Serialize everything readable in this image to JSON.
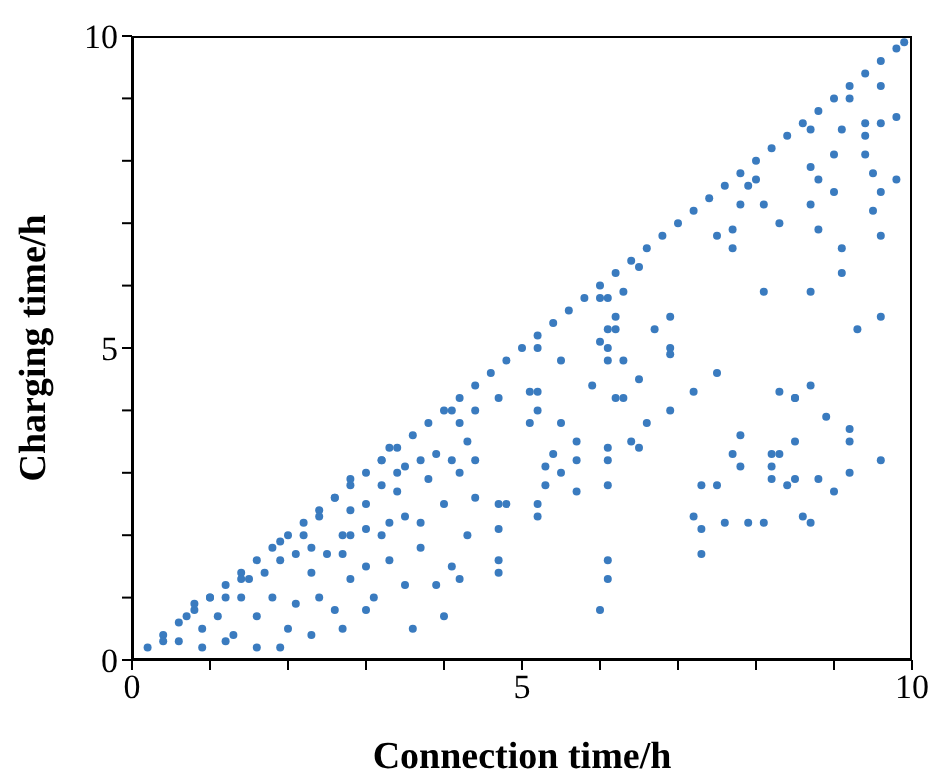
{
  "chart_data": {
    "type": "scatter",
    "xlabel": "Connection time/h",
    "ylabel": "Charging time/h",
    "xlim": [
      0,
      10
    ],
    "ylim": [
      0,
      10
    ],
    "xticks": [
      0,
      {
        "value": 1,
        "label": null
      },
      {
        "value": 2,
        "label": null
      },
      {
        "value": 3,
        "label": null
      },
      {
        "value": 4,
        "label": null
      },
      5,
      {
        "value": 6,
        "label": null
      },
      {
        "value": 7,
        "label": null
      },
      {
        "value": 8,
        "label": null
      },
      {
        "value": 9,
        "label": null
      },
      10
    ],
    "yticks": [
      0,
      {
        "value": 1,
        "label": null
      },
      {
        "value": 2,
        "label": null
      },
      {
        "value": 3,
        "label": null
      },
      {
        "value": 4,
        "label": null
      },
      5,
      {
        "value": 6,
        "label": null
      },
      {
        "value": 7,
        "label": null
      },
      {
        "value": 8,
        "label": null
      },
      {
        "value": 9,
        "label": null
      },
      10
    ],
    "marker": "circle",
    "series": [
      {
        "color": "#3a7bbf",
        "x": [
          0.2,
          0.4,
          0.6,
          0.8,
          1.0,
          1.2,
          1.4,
          1.6,
          1.8,
          2.0,
          2.2,
          2.4,
          2.6,
          2.8,
          3.0,
          3.2,
          3.4,
          3.6,
          3.8,
          4.0,
          4.2,
          4.4,
          4.6,
          4.8,
          5.0,
          5.2,
          5.4,
          5.6,
          5.8,
          6.0,
          6.2,
          6.4,
          6.6,
          6.8,
          7.0,
          7.2,
          7.4,
          7.6,
          7.8,
          8.0,
          8.2,
          8.4,
          8.6,
          8.8,
          9.0,
          9.2,
          9.4,
          9.6,
          9.8,
          9.9,
          5.1,
          5.2,
          5.2,
          5.1,
          5.5,
          5.4,
          5.3,
          5.5,
          5.3,
          5.2,
          5.2,
          5.7,
          5.7,
          5.7,
          5.9,
          6.1,
          6.1,
          6.1,
          6.2,
          6.3,
          6.4,
          6.5,
          6.6,
          6.9,
          6.1,
          6.1,
          6.0,
          7.2,
          7.2,
          7.3,
          7.3,
          7.3,
          7.5,
          7.6,
          7.7,
          7.8,
          7.8,
          7.9,
          8.1,
          8.2,
          8.2,
          8.2,
          8.3,
          8.3,
          8.4,
          8.5,
          8.5,
          8.5,
          8.6,
          8.7,
          8.7,
          8.8,
          8.9,
          9.0,
          9.2,
          9.2,
          9.2,
          9.6,
          5.2,
          5.5,
          6.0,
          6.1,
          6.1,
          6.3,
          6.1,
          6.2,
          6.2,
          6.0,
          6.1,
          6.3,
          6.5,
          6.7,
          6.9,
          6.9,
          6.9,
          6.5,
          7.5,
          7.5,
          7.7,
          7.7,
          7.8,
          7.9,
          8.0,
          8.1,
          8.3,
          8.1,
          8.7,
          8.8,
          8.7,
          8.8,
          9.0,
          9.0,
          8.7,
          9.1,
          9.1,
          9.1,
          9.3,
          9.4,
          9.4,
          9.4,
          9.5,
          9.5,
          9.6,
          9.6,
          9.6,
          9.6,
          9.8,
          9.8,
          9.6,
          9.2,
          8.7,
          8.5,
          0.4,
          0.6,
          0.9,
          1.2,
          1.3,
          1.6,
          1.9,
          2.0,
          2.3,
          2.7,
          3.0,
          3.6,
          4.0,
          0.7,
          0.9,
          1.1,
          1.4,
          1.6,
          1.8,
          2.1,
          2.3,
          2.4,
          2.6,
          2.7,
          2.8,
          3.0,
          3.1,
          3.3,
          3.5,
          3.7,
          3.9,
          4.1,
          4.2,
          4.3,
          4.7,
          4.7,
          4.7,
          4.7,
          4.8,
          4.4,
          4.4,
          4.3,
          4.2,
          4.2,
          4.1,
          4.4,
          4.7,
          3.9,
          3.8,
          4.0,
          3.7,
          3.5,
          3.3,
          3.2,
          3.5,
          3.4,
          3.4,
          3.2,
          3.0,
          2.8,
          3.0,
          2.8,
          2.7,
          2.5,
          2.3,
          2.2,
          2.1,
          1.9,
          1.9,
          1.7,
          1.5,
          1.4,
          1.2,
          1.0,
          0.8,
          2.6,
          2.4,
          2.8,
          3.2,
          3.3,
          3.7,
          4.1
        ],
        "values": [
          0.2,
          0.4,
          0.6,
          0.8,
          1.0,
          1.2,
          1.4,
          1.6,
          1.8,
          2.0,
          2.2,
          2.4,
          2.6,
          2.8,
          3.0,
          3.2,
          3.4,
          3.6,
          3.8,
          4.0,
          4.2,
          4.4,
          4.6,
          4.8,
          5.0,
          5.2,
          5.4,
          5.6,
          5.8,
          6.0,
          6.2,
          6.4,
          6.6,
          6.8,
          7.0,
          7.2,
          7.4,
          7.6,
          7.8,
          8.0,
          8.2,
          8.4,
          8.6,
          8.8,
          9.0,
          9.2,
          9.4,
          9.6,
          9.8,
          9.9,
          4.3,
          4.3,
          4.0,
          3.8,
          3.8,
          3.3,
          3.1,
          3.0,
          2.8,
          2.5,
          2.3,
          3.2,
          3.5,
          2.7,
          4.4,
          2.8,
          3.2,
          3.4,
          4.2,
          4.2,
          3.5,
          3.4,
          3.8,
          4.0,
          1.6,
          1.3,
          0.8,
          4.3,
          2.3,
          2.1,
          1.7,
          2.8,
          2.8,
          2.2,
          3.3,
          3.6,
          3.1,
          2.2,
          2.2,
          3.3,
          3.1,
          2.9,
          4.3,
          3.3,
          2.8,
          4.2,
          2.9,
          3.5,
          2.3,
          2.2,
          4.4,
          2.9,
          3.9,
          2.7,
          3.7,
          3.5,
          3.0,
          3.2,
          5.0,
          4.8,
          5.1,
          5.0,
          4.8,
          4.8,
          5.3,
          5.3,
          5.5,
          5.8,
          5.8,
          5.9,
          6.3,
          5.3,
          5.5,
          4.9,
          5.0,
          4.5,
          4.6,
          6.8,
          6.9,
          6.6,
          7.3,
          7.6,
          7.7,
          7.3,
          7.0,
          5.9,
          7.9,
          7.7,
          7.3,
          6.9,
          8.1,
          7.5,
          5.9,
          8.5,
          6.6,
          6.2,
          5.3,
          8.6,
          8.4,
          8.1,
          7.8,
          7.2,
          6.8,
          5.5,
          7.5,
          8.6,
          8.7,
          7.7,
          9.2,
          9.0,
          8.5,
          4.2,
          0.3,
          0.3,
          0.2,
          0.3,
          0.4,
          0.2,
          0.2,
          0.5,
          0.4,
          0.5,
          0.8,
          0.5,
          0.7,
          0.7,
          0.5,
          0.7,
          1.0,
          0.7,
          1.0,
          0.9,
          1.4,
          1.0,
          0.8,
          1.7,
          1.3,
          1.5,
          1.0,
          1.6,
          1.2,
          1.8,
          1.2,
          1.5,
          1.3,
          2.0,
          1.6,
          1.4,
          2.1,
          2.5,
          2.5,
          2.6,
          3.2,
          3.5,
          3.0,
          3.8,
          4.0,
          4.0,
          4.2,
          3.3,
          2.9,
          2.5,
          2.2,
          2.3,
          2.2,
          2.0,
          3.1,
          3.0,
          2.7,
          2.8,
          2.5,
          2.4,
          2.1,
          2.0,
          2.0,
          1.7,
          1.8,
          2.0,
          1.7,
          1.6,
          1.9,
          1.4,
          1.3,
          1.3,
          1.0,
          1.0,
          0.9,
          2.6,
          2.3,
          2.9,
          3.2,
          3.4,
          3.2,
          3.2
        ]
      }
    ]
  }
}
